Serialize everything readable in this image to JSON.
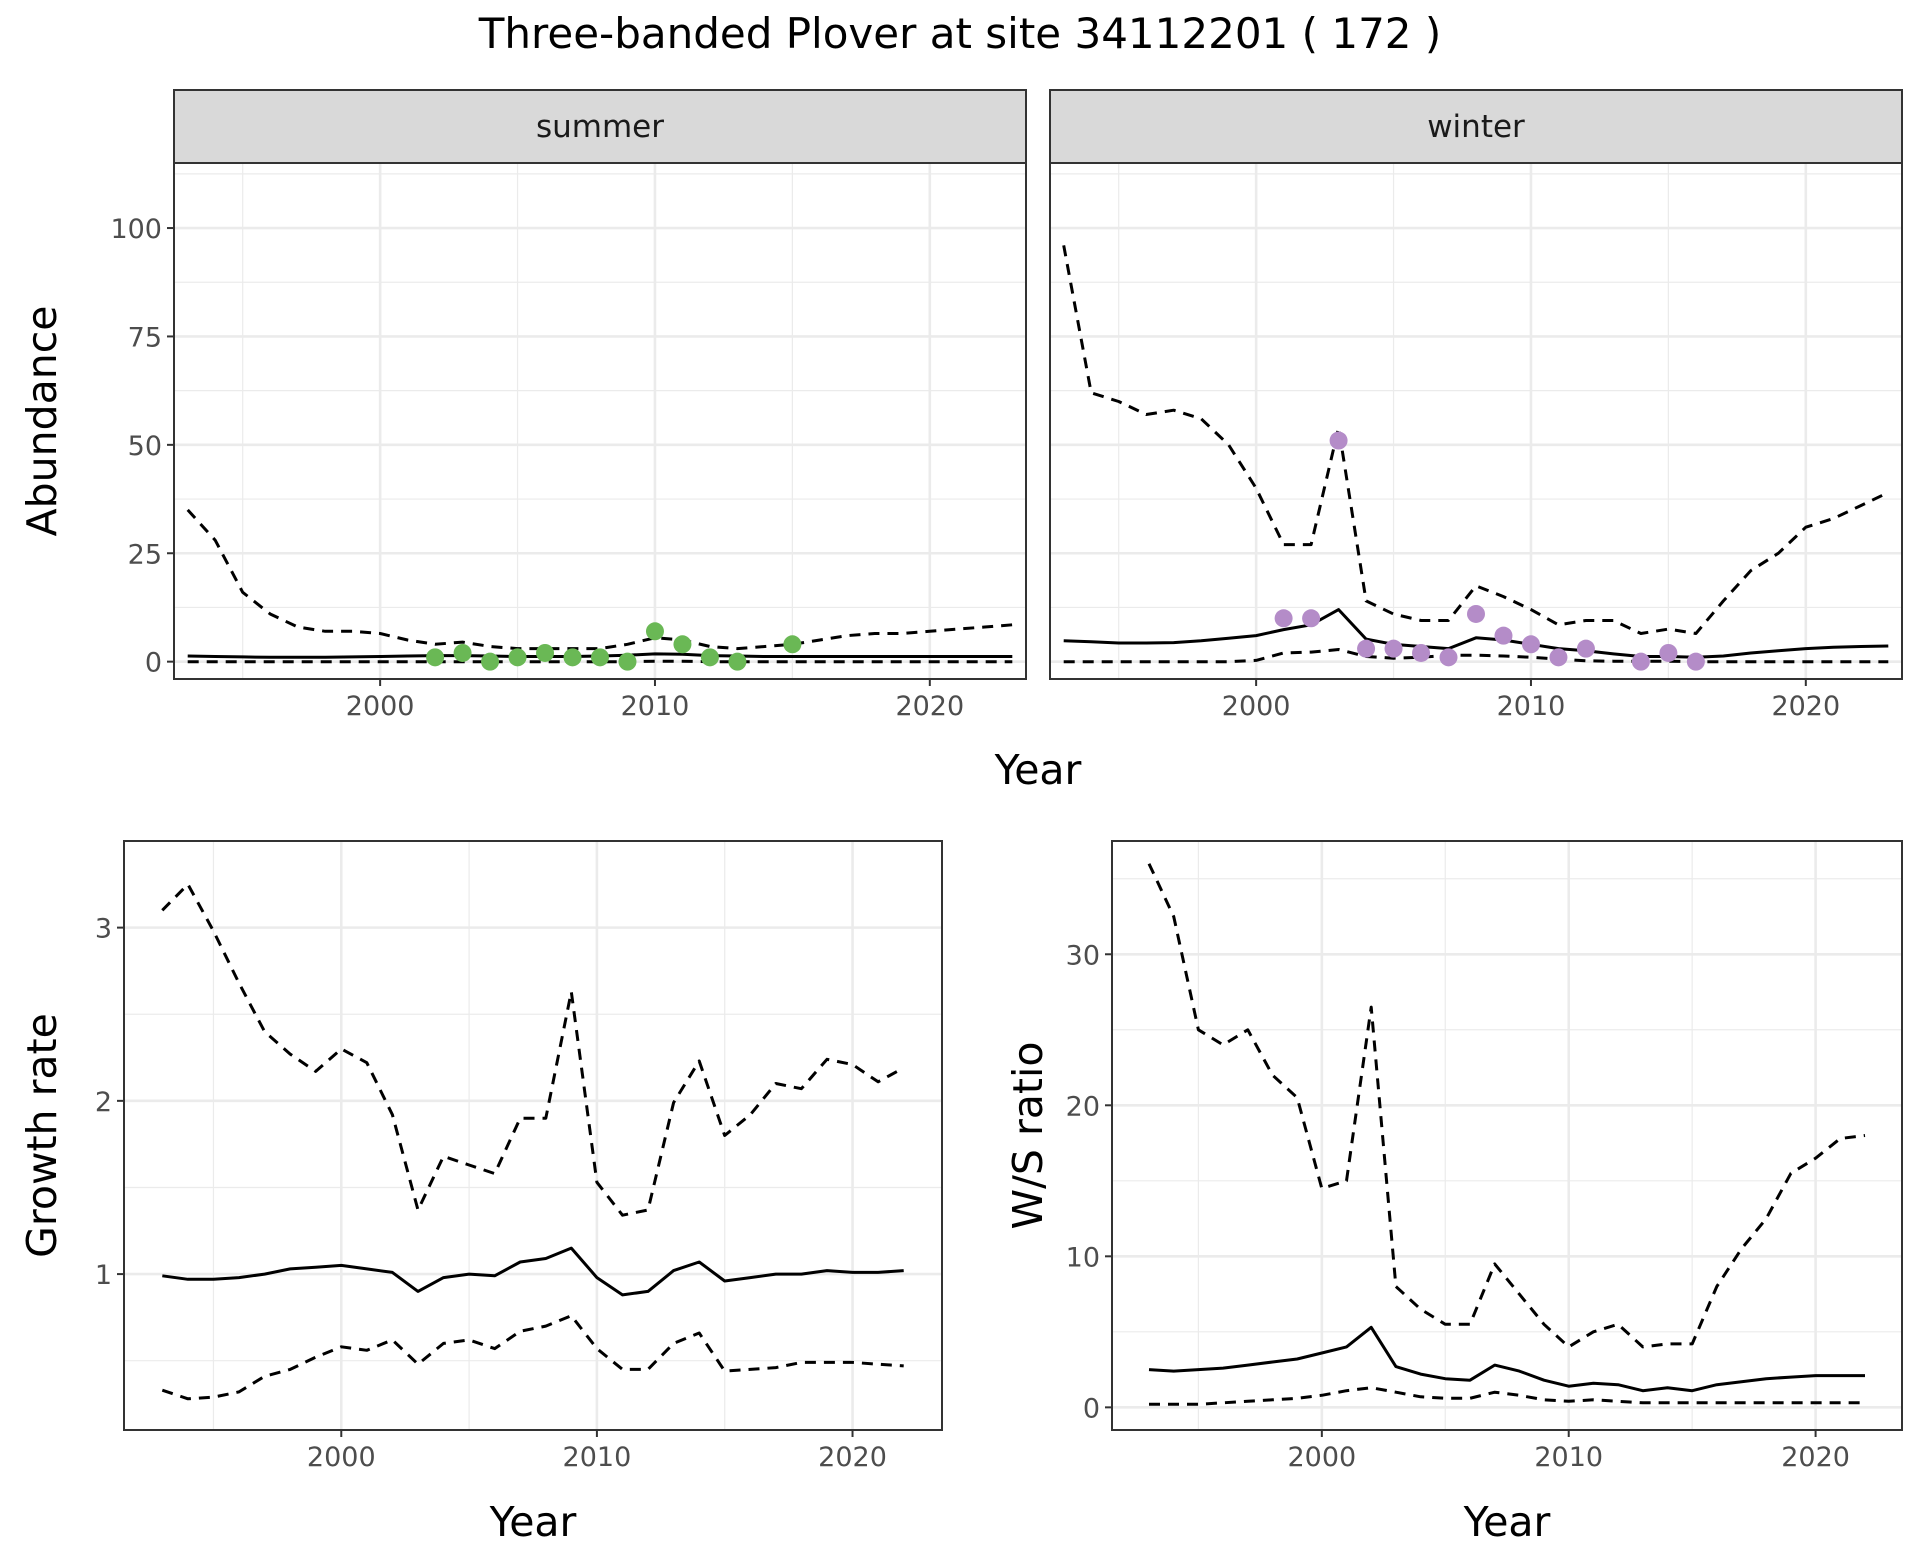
{
  "title": "Three-banded Plover at site 34112201 ( 172 )",
  "colors": {
    "summer_points": "#6ab855",
    "winter_points": "#b48cc8",
    "line": "#000000",
    "strip": "#d9d9d9",
    "grid": "#ebebeb"
  },
  "chart_data": [
    {
      "id": "abundance",
      "type": "line",
      "facets": [
        "summer",
        "winter"
      ],
      "xlabel": "Year",
      "ylabel": "Abundance",
      "xlim": [
        1992.5,
        2023.5
      ],
      "ylim": [
        -4,
        115
      ],
      "xticks": [
        2000,
        2010,
        2020
      ],
      "xtick_labels": [
        "2000",
        "2010",
        "2020"
      ],
      "yticks": [
        0,
        25,
        50,
        75,
        100
      ],
      "ytick_labels": [
        "0",
        "25",
        "50",
        "75",
        "100"
      ],
      "panels": {
        "summer": {
          "x": [
            1993,
            1994,
            1995,
            1996,
            1997,
            1998,
            1999,
            2000,
            2001,
            2002,
            2003,
            2004,
            2005,
            2006,
            2007,
            2008,
            2009,
            2010,
            2011,
            2012,
            2013,
            2014,
            2015,
            2016,
            2017,
            2018,
            2019,
            2020,
            2021,
            2022,
            2023
          ],
          "mean": [
            1.3,
            1.2,
            1.1,
            1.0,
            1.0,
            1.0,
            1.1,
            1.2,
            1.3,
            1.4,
            1.4,
            1.3,
            1.2,
            1.2,
            1.2,
            1.3,
            1.5,
            1.8,
            1.7,
            1.4,
            1.3,
            1.2,
            1.2,
            1.2,
            1.2,
            1.2,
            1.2,
            1.2,
            1.2,
            1.2,
            1.2
          ],
          "upper": [
            35,
            28,
            16,
            11,
            8,
            7,
            7,
            6.5,
            5,
            4,
            4.5,
            3.5,
            3,
            3,
            3,
            3,
            4,
            5.5,
            5,
            3.5,
            3,
            3.5,
            4,
            5,
            6,
            6.5,
            6.5,
            7,
            7.5,
            8,
            8.5
          ],
          "lower": [
            0,
            0,
            0,
            0,
            0,
            0,
            0,
            0,
            0,
            0,
            0,
            0,
            0,
            0,
            0,
            0,
            0,
            0.1,
            0.1,
            0,
            0,
            0,
            0,
            0,
            0,
            0,
            0,
            0,
            0,
            0,
            0
          ],
          "observed_x": [
            2002,
            2003,
            2004,
            2005,
            2006,
            2007,
            2008,
            2009,
            2010,
            2011,
            2012,
            2013,
            2015
          ],
          "observed_y": [
            1,
            2,
            0,
            1,
            2,
            1,
            1,
            0,
            7,
            4,
            1,
            0,
            4
          ]
        },
        "winter": {
          "x": [
            1993,
            1994,
            1995,
            1996,
            1997,
            1998,
            1999,
            2000,
            2001,
            2002,
            2003,
            2004,
            2005,
            2006,
            2007,
            2008,
            2009,
            2010,
            2011,
            2012,
            2013,
            2014,
            2015,
            2016,
            2017,
            2018,
            2019,
            2020,
            2021,
            2022,
            2023
          ],
          "mean": [
            4.8,
            4.6,
            4.3,
            4.3,
            4.4,
            4.8,
            5.4,
            6.0,
            7.4,
            8.5,
            12.0,
            5.2,
            4.0,
            3.5,
            3.0,
            5.5,
            5.0,
            4.0,
            3.0,
            2.5,
            1.8,
            1.2,
            1.2,
            1.0,
            1.3,
            2.0,
            2.5,
            3.0,
            3.3,
            3.5,
            3.6
          ],
          "upper": [
            96,
            62,
            60,
            57,
            58,
            56,
            50,
            40,
            27,
            27,
            54,
            14,
            11,
            9.5,
            9.5,
            17.5,
            15,
            12,
            8.5,
            9.5,
            9.5,
            6.5,
            7.5,
            6.5,
            14,
            21,
            25,
            31,
            33,
            36,
            39
          ],
          "lower": [
            0,
            0,
            0,
            0,
            0,
            0,
            0,
            0.3,
            2,
            2.2,
            2.8,
            1.2,
            0.8,
            1,
            1.5,
            1.5,
            1.3,
            1,
            0.6,
            0.2,
            0.1,
            0.1,
            0.1,
            0,
            0,
            0,
            0,
            0,
            0,
            0,
            0
          ],
          "observed_x": [
            2001,
            2002,
            2003,
            2004,
            2005,
            2006,
            2007,
            2008,
            2009,
            2010,
            2011,
            2012,
            2014,
            2015,
            2016
          ],
          "observed_y": [
            10,
            10,
            51,
            3,
            3,
            2,
            1,
            11,
            6,
            4,
            1,
            3,
            0,
            2,
            0
          ]
        }
      }
    },
    {
      "id": "growth",
      "type": "line",
      "xlabel": "Year",
      "ylabel": "Growth rate",
      "xlim": [
        1991.5,
        2023.5
      ],
      "ylim": [
        0.1,
        3.5
      ],
      "xticks": [
        2000,
        2010,
        2020
      ],
      "xtick_labels": [
        "2000",
        "2010",
        "2020"
      ],
      "yticks": [
        1,
        2,
        3
      ],
      "ytick_labels": [
        "1",
        "2",
        "3"
      ],
      "x": [
        1993,
        1994,
        1995,
        1996,
        1997,
        1998,
        1999,
        2000,
        2001,
        2002,
        2003,
        2004,
        2005,
        2006,
        2007,
        2008,
        2009,
        2010,
        2011,
        2012,
        2013,
        2014,
        2015,
        2016,
        2017,
        2018,
        2019,
        2020,
        2021,
        2022
      ],
      "mean": [
        0.99,
        0.97,
        0.97,
        0.98,
        1.0,
        1.03,
        1.04,
        1.05,
        1.03,
        1.01,
        0.9,
        0.98,
        1.0,
        0.99,
        1.07,
        1.09,
        1.15,
        0.98,
        0.88,
        0.9,
        1.02,
        1.07,
        0.96,
        0.98,
        1.0,
        1.0,
        1.02,
        1.01,
        1.01,
        1.02
      ],
      "upper": [
        3.1,
        3.25,
        2.98,
        2.68,
        2.4,
        2.27,
        2.17,
        2.3,
        2.22,
        1.92,
        1.37,
        1.68,
        1.63,
        1.58,
        1.9,
        1.9,
        2.63,
        1.53,
        1.34,
        1.37,
        1.99,
        2.23,
        1.8,
        1.92,
        2.1,
        2.07,
        2.24,
        2.21,
        2.11,
        2.19
      ],
      "lower": [
        0.33,
        0.28,
        0.29,
        0.32,
        0.41,
        0.45,
        0.52,
        0.58,
        0.56,
        0.62,
        0.48,
        0.6,
        0.62,
        0.57,
        0.67,
        0.7,
        0.76,
        0.57,
        0.45,
        0.45,
        0.6,
        0.66,
        0.44,
        0.45,
        0.46,
        0.49,
        0.49,
        0.49,
        0.48,
        0.47
      ]
    },
    {
      "id": "ws_ratio",
      "type": "line",
      "xlabel": "Year",
      "ylabel": "W/S ratio",
      "xlim": [
        1991.5,
        2023.5
      ],
      "ylim": [
        -1.5,
        37.5
      ],
      "xticks": [
        2000,
        2010,
        2020
      ],
      "xtick_labels": [
        "2000",
        "2010",
        "2020"
      ],
      "yticks": [
        0,
        10,
        20,
        30
      ],
      "ytick_labels": [
        "0",
        "10",
        "20",
        "30"
      ],
      "x": [
        1993,
        1994,
        1995,
        1996,
        1997,
        1998,
        1999,
        2000,
        2001,
        2002,
        2003,
        2004,
        2005,
        2006,
        2007,
        2008,
        2009,
        2010,
        2011,
        2012,
        2013,
        2014,
        2015,
        2016,
        2017,
        2018,
        2019,
        2020,
        2021,
        2022
      ],
      "mean": [
        2.5,
        2.4,
        2.5,
        2.6,
        2.8,
        3.0,
        3.2,
        3.6,
        4.0,
        5.3,
        2.7,
        2.2,
        1.9,
        1.8,
        2.8,
        2.4,
        1.8,
        1.4,
        1.6,
        1.5,
        1.1,
        1.3,
        1.1,
        1.5,
        1.7,
        1.9,
        2.0,
        2.1,
        2.1,
        2.1
      ],
      "upper": [
        36,
        32.5,
        25,
        24,
        25,
        22,
        20.5,
        14.5,
        15,
        26.5,
        8,
        6.5,
        5.5,
        5.5,
        9.5,
        7.5,
        5.5,
        4,
        5,
        5.5,
        4,
        4.2,
        4.2,
        8,
        10.5,
        12.5,
        15.5,
        16.5,
        17.8,
        18
      ],
      "lower": [
        0.2,
        0.2,
        0.2,
        0.3,
        0.4,
        0.5,
        0.6,
        0.8,
        1.1,
        1.3,
        1.0,
        0.7,
        0.6,
        0.6,
        1.0,
        0.8,
        0.5,
        0.4,
        0.5,
        0.4,
        0.3,
        0.3,
        0.3,
        0.3,
        0.3,
        0.3,
        0.3,
        0.3,
        0.3,
        0.3
      ]
    }
  ]
}
